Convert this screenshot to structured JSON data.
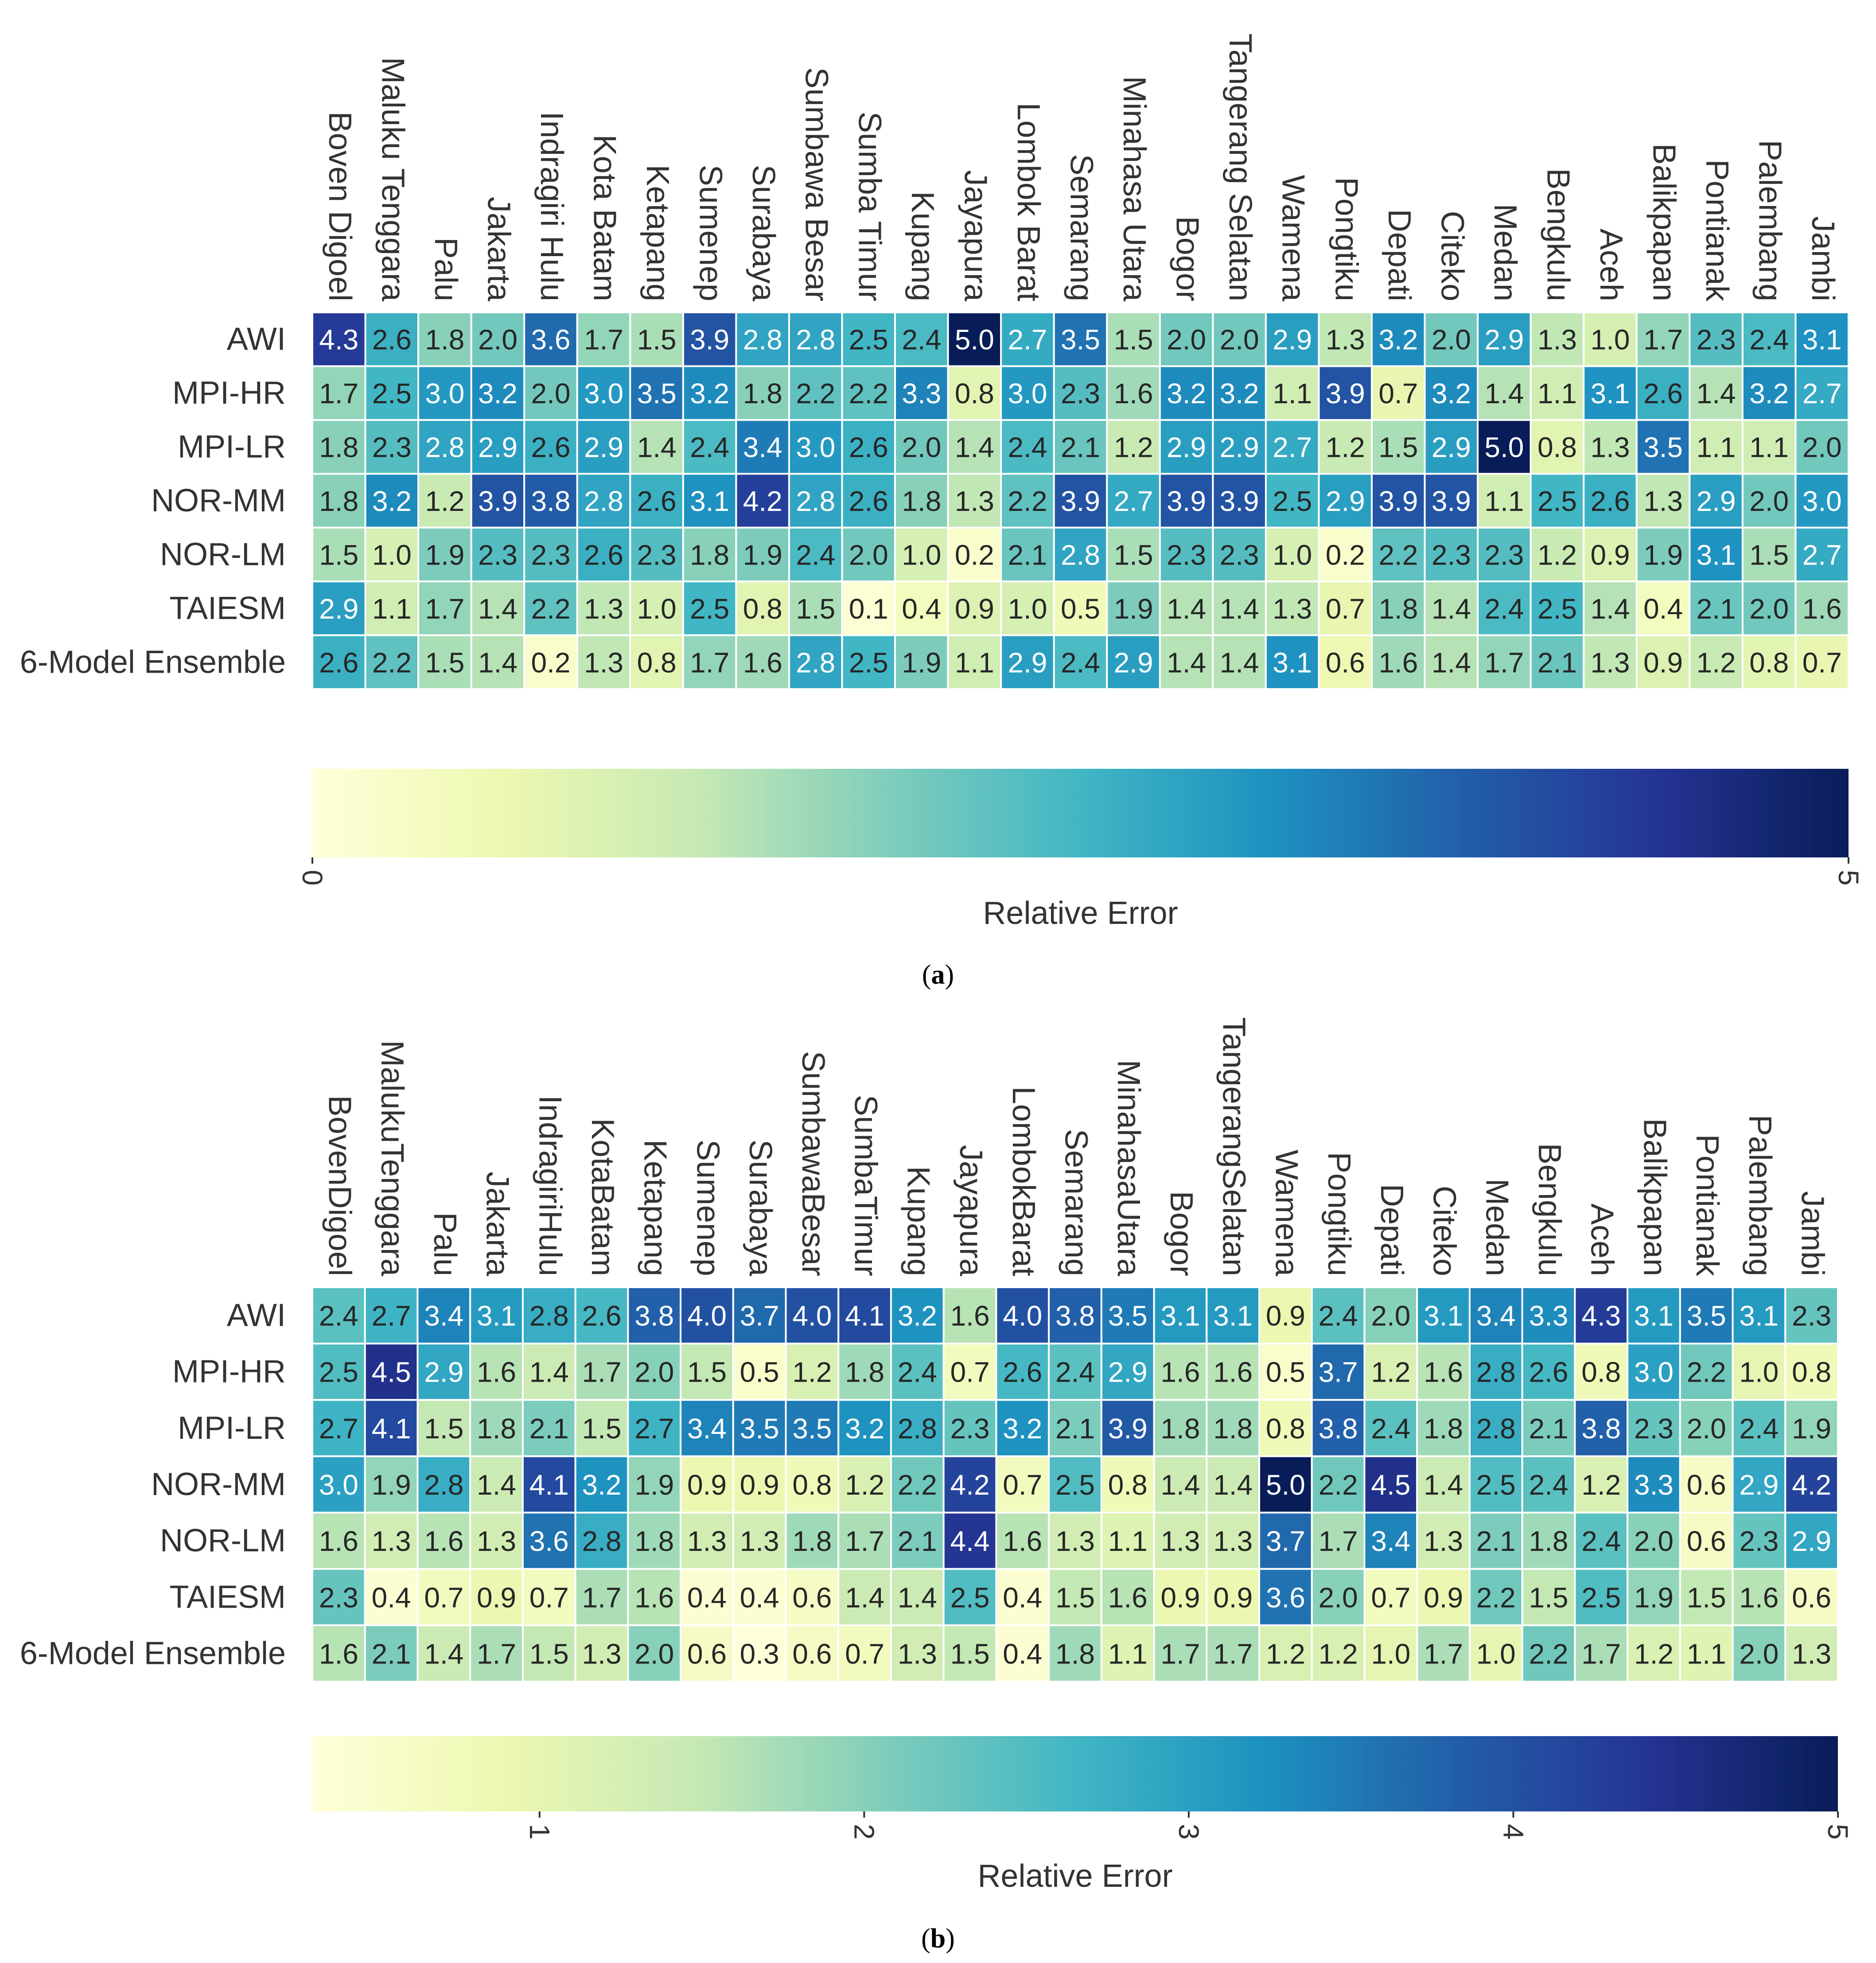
{
  "chart_data": [
    {
      "type": "heatmap",
      "panel": "(a)",
      "panel_letter": "a",
      "rows": [
        "AWI",
        "MPI-HR",
        "MPI-LR",
        "NOR-MM",
        "NOR-LM",
        "TAIESM",
        "6-Model Ensemble"
      ],
      "columns": [
        "Boven Digoel",
        "Maluku Tenggara",
        "Palu",
        "Jakarta",
        "Indragiri Hulu",
        "Kota Batam",
        "Ketapang",
        "Sumenep",
        "Surabaya",
        "Sumbawa Besar",
        "Sumba Timur",
        "Kupang",
        "Jayapura",
        "Lombok Barat",
        "Semarang",
        "Minahasa Utara",
        "Bogor",
        "Tangerang Selatan",
        "Wamena",
        "Pongtiku",
        "Depati",
        "Citeko",
        "Medan",
        "Bengkulu",
        "Aceh",
        "Balikpapan",
        "Pontianak",
        "Palembang",
        "Jambi"
      ],
      "values": [
        [
          4.3,
          2.6,
          1.8,
          2.0,
          3.6,
          1.7,
          1.5,
          3.9,
          2.8,
          2.8,
          2.5,
          2.4,
          5.0,
          2.7,
          3.5,
          1.5,
          2.0,
          2.0,
          2.9,
          1.3,
          3.2,
          2.0,
          2.9,
          1.3,
          1.0,
          1.7,
          2.3,
          2.4,
          3.1
        ],
        [
          1.7,
          2.5,
          3.0,
          3.2,
          2.0,
          3.0,
          3.5,
          3.2,
          1.8,
          2.2,
          2.2,
          3.3,
          0.8,
          3.0,
          2.3,
          1.6,
          3.2,
          3.2,
          1.1,
          3.9,
          0.7,
          3.2,
          1.4,
          1.1,
          3.1,
          2.6,
          1.4,
          3.2,
          2.7
        ],
        [
          1.8,
          2.3,
          2.8,
          2.9,
          2.6,
          2.9,
          1.4,
          2.4,
          3.4,
          3.0,
          2.6,
          2.0,
          1.4,
          2.4,
          2.1,
          1.2,
          2.9,
          2.9,
          2.7,
          1.2,
          1.5,
          2.9,
          5.0,
          0.8,
          1.3,
          3.5,
          1.1,
          1.1,
          2.0
        ],
        [
          1.8,
          3.2,
          1.2,
          3.9,
          3.8,
          2.8,
          2.6,
          3.1,
          4.2,
          2.8,
          2.6,
          1.8,
          1.3,
          2.2,
          3.9,
          2.7,
          3.9,
          3.9,
          2.5,
          2.9,
          3.9,
          3.9,
          1.1,
          2.5,
          2.6,
          1.3,
          2.9,
          2.0,
          3.0
        ],
        [
          1.5,
          1.0,
          1.9,
          2.3,
          2.3,
          2.6,
          2.3,
          1.8,
          1.9,
          2.4,
          2.0,
          1.0,
          0.2,
          2.1,
          2.8,
          1.5,
          2.3,
          2.3,
          1.0,
          0.2,
          2.2,
          2.3,
          2.3,
          1.2,
          0.9,
          1.9,
          3.1,
          1.5,
          2.7
        ],
        [
          2.9,
          1.1,
          1.7,
          1.4,
          2.2,
          1.3,
          1.0,
          2.5,
          0.8,
          1.5,
          0.1,
          0.4,
          0.9,
          1.0,
          0.5,
          1.9,
          1.4,
          1.4,
          1.3,
          0.7,
          1.8,
          1.4,
          2.4,
          2.5,
          1.4,
          0.4,
          2.1,
          2.0,
          1.6
        ],
        [
          2.6,
          2.2,
          1.5,
          1.4,
          0.2,
          1.3,
          0.8,
          1.7,
          1.6,
          2.8,
          2.5,
          1.9,
          1.1,
          2.9,
          2.4,
          2.9,
          1.4,
          1.4,
          3.1,
          0.6,
          1.6,
          1.4,
          1.7,
          2.1,
          1.3,
          0.9,
          1.2,
          0.8,
          0.7
        ]
      ],
      "colorbar": {
        "label": "Relative Error",
        "vmin": 0,
        "vmax": 5,
        "ticks": [
          "0",
          "5"
        ]
      }
    },
    {
      "type": "heatmap",
      "panel": "(b)",
      "panel_letter": "b",
      "rows": [
        "AWI",
        "MPI-HR",
        "MPI-LR",
        "NOR-MM",
        "NOR-LM",
        "TAIESM",
        "6-Model Ensemble"
      ],
      "columns": [
        "BovenDigoel",
        "MalukuTenggara",
        "Palu",
        "Jakarta",
        "IndragiriHulu",
        "KotaBatam",
        "Ketapang",
        "Sumenep",
        "Surabaya",
        "SumbawaBesar",
        "SumbaTimur",
        "Kupang",
        "Jayapura",
        "LombokBarat",
        "Semarang",
        "MinahasaUtara",
        "Bogor",
        "TangerangSelatan",
        "Wamena",
        "Pongtiku",
        "Depati",
        "Citeko",
        "Medan",
        "Bengkulu",
        "Aceh",
        "Balikpapan",
        "Pontianak",
        "Palembang",
        "Jambi"
      ],
      "values": [
        [
          2.4,
          2.7,
          3.4,
          3.1,
          2.8,
          2.6,
          3.8,
          4.0,
          3.7,
          4.0,
          4.1,
          3.2,
          1.6,
          4.0,
          3.8,
          3.5,
          3.1,
          3.1,
          0.9,
          2.4,
          2.0,
          3.1,
          3.4,
          3.3,
          4.3,
          3.1,
          3.5,
          3.1,
          2.3
        ],
        [
          2.5,
          4.5,
          2.9,
          1.6,
          1.4,
          1.7,
          2.0,
          1.5,
          0.5,
          1.2,
          1.8,
          2.4,
          0.7,
          2.6,
          2.4,
          2.9,
          1.6,
          1.6,
          0.5,
          3.7,
          1.2,
          1.6,
          2.8,
          2.6,
          0.8,
          3.0,
          2.2,
          1.0,
          0.8
        ],
        [
          2.7,
          4.1,
          1.5,
          1.8,
          2.1,
          1.5,
          2.7,
          3.4,
          3.5,
          3.5,
          3.2,
          2.8,
          2.3,
          3.2,
          2.1,
          3.9,
          1.8,
          1.8,
          0.8,
          3.8,
          2.4,
          1.8,
          2.8,
          2.1,
          3.8,
          2.3,
          2.0,
          2.4,
          1.9
        ],
        [
          3.0,
          1.9,
          2.8,
          1.4,
          4.1,
          3.2,
          1.9,
          0.9,
          0.9,
          0.8,
          1.2,
          2.2,
          4.2,
          0.7,
          2.5,
          0.8,
          1.4,
          1.4,
          5.0,
          2.2,
          4.5,
          1.4,
          2.5,
          2.4,
          1.2,
          3.3,
          0.6,
          2.9,
          4.2
        ],
        [
          1.6,
          1.3,
          1.6,
          1.3,
          3.6,
          2.8,
          1.8,
          1.3,
          1.3,
          1.8,
          1.7,
          2.1,
          4.4,
          1.6,
          1.3,
          1.1,
          1.3,
          1.3,
          3.7,
          1.7,
          3.4,
          1.3,
          2.1,
          1.8,
          2.4,
          2.0,
          0.6,
          2.3,
          2.9
        ],
        [
          2.3,
          0.4,
          0.7,
          0.9,
          0.7,
          1.7,
          1.6,
          0.4,
          0.4,
          0.6,
          1.4,
          1.4,
          2.5,
          0.4,
          1.5,
          1.6,
          0.9,
          0.9,
          3.6,
          2.0,
          0.7,
          0.9,
          2.2,
          1.5,
          2.5,
          1.9,
          1.5,
          1.6,
          0.6
        ],
        [
          1.6,
          2.1,
          1.4,
          1.7,
          1.5,
          1.3,
          2.0,
          0.6,
          0.3,
          0.6,
          0.7,
          1.3,
          1.5,
          0.4,
          1.8,
          1.1,
          1.7,
          1.7,
          1.2,
          1.2,
          1.0,
          1.7,
          1.0,
          2.2,
          1.7,
          1.2,
          1.1,
          2.0,
          1.3
        ]
      ],
      "colorbar": {
        "label": "Relative Error",
        "vmin": 0.3,
        "vmax": 5,
        "ticks": [
          "1",
          "2",
          "3",
          "4",
          "5"
        ]
      }
    }
  ]
}
